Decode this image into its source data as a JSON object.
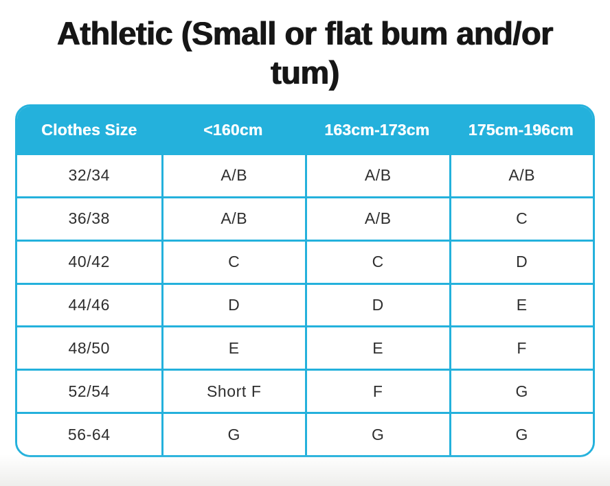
{
  "page": {
    "title": "Athletic (Small or flat bum and/or tum)",
    "title_lines": [
      "Athletic (Small or flat bum and/or",
      "tum)"
    ]
  },
  "table": {
    "columns": [
      "Clothes Size",
      "<160cm",
      "163cm-173cm",
      "175cm-196cm"
    ],
    "rows": [
      [
        "32/34",
        "A/B",
        "A/B",
        "A/B"
      ],
      [
        "36/38",
        "A/B",
        "A/B",
        "C"
      ],
      [
        "40/42",
        "C",
        "C",
        "D"
      ],
      [
        "44/46",
        "D",
        "D",
        "E"
      ],
      [
        "48/50",
        "E",
        "E",
        "F"
      ],
      [
        "52/54",
        "Short F",
        "F",
        "G"
      ],
      [
        "56-64",
        "G",
        "G",
        "G"
      ]
    ]
  },
  "colors": {
    "accent_cyan": "#24B1DC",
    "header_text": "#FFFFFF",
    "body_text": "#2E2E2E",
    "title_text": "#161616",
    "page_background": "#FFFFFF"
  }
}
